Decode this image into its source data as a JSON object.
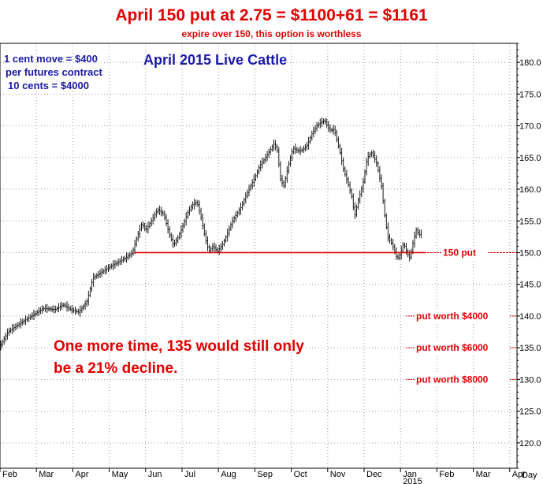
{
  "header": {
    "headline": "April 150 put at 2.75 = $1100+61 = $1161",
    "subhead": "expire over 150, this option is worthless"
  },
  "notes": {
    "move_line1": "1 cent move = $400",
    "move_line2": "per futures contract",
    "move_line3": "10 cents = $4000",
    "decline_note": "One more time, 135 would still only be a 21% decline."
  },
  "chart_data": {
    "type": "bar",
    "title": "April 2015 Live Cattle",
    "subtitle": "",
    "xlabel": "",
    "ylabel": "",
    "ylim": [
      116,
      183
    ],
    "y_axis_position": "right",
    "y_ticks": [
      120,
      125,
      130,
      135,
      140,
      145,
      150,
      155,
      160,
      165,
      170,
      175,
      180
    ],
    "x_ticks": [
      "Feb",
      "Mar",
      "Apr",
      "May",
      "Jun",
      "Jul",
      "Aug",
      "Sep",
      "Oct",
      "Nov",
      "Dec",
      "Jan",
      "Feb",
      "Mar",
      "Apr"
    ],
    "x_extra_label": "2015",
    "x_axis_end_label": "Day",
    "grid": true,
    "price_path": [
      [
        0,
        135.2
      ],
      [
        10,
        137.5
      ],
      [
        25,
        138.8
      ],
      [
        35,
        139.6
      ],
      [
        45,
        140.4
      ],
      [
        55,
        141.2
      ],
      [
        70,
        141.0
      ],
      [
        80,
        141.8
      ],
      [
        90,
        141.0
      ],
      [
        100,
        140.6
      ],
      [
        110,
        142.2
      ],
      [
        118,
        146.0
      ],
      [
        130,
        147.0
      ],
      [
        140,
        147.8
      ],
      [
        150,
        148.5
      ],
      [
        160,
        149.2
      ],
      [
        168,
        150.0
      ],
      [
        174,
        152.5
      ],
      [
        180,
        154.6
      ],
      [
        185,
        153.5
      ],
      [
        192,
        155.0
      ],
      [
        200,
        156.8
      ],
      [
        208,
        156.0
      ],
      [
        214,
        153.2
      ],
      [
        220,
        151.2
      ],
      [
        226,
        152.4
      ],
      [
        232,
        154.2
      ],
      [
        238,
        156.3
      ],
      [
        244,
        157.5
      ],
      [
        250,
        158.0
      ],
      [
        255,
        155.6
      ],
      [
        260,
        152.5
      ],
      [
        265,
        150.2
      ],
      [
        270,
        151.0
      ],
      [
        276,
        150.2
      ],
      [
        282,
        151.2
      ],
      [
        288,
        152.8
      ],
      [
        294,
        154.8
      ],
      [
        300,
        156.0
      ],
      [
        306,
        157.2
      ],
      [
        312,
        159.0
      ],
      [
        318,
        160.5
      ],
      [
        324,
        162.0
      ],
      [
        330,
        163.8
      ],
      [
        336,
        164.8
      ],
      [
        342,
        166.0
      ],
      [
        348,
        167.2
      ],
      [
        352,
        166.0
      ],
      [
        356,
        161.5
      ],
      [
        360,
        160.5
      ],
      [
        366,
        163.8
      ],
      [
        372,
        166.5
      ],
      [
        378,
        166.0
      ],
      [
        384,
        166.2
      ],
      [
        390,
        167.0
      ],
      [
        396,
        168.8
      ],
      [
        402,
        170.0
      ],
      [
        408,
        170.6
      ],
      [
        412,
        170.8
      ],
      [
        416,
        169.8
      ],
      [
        420,
        169.2
      ],
      [
        424,
        169.5
      ],
      [
        428,
        167.5
      ],
      [
        432,
        165.5
      ],
      [
        436,
        163.0
      ],
      [
        440,
        161.5
      ],
      [
        446,
        159.0
      ],
      [
        450,
        155.8
      ],
      [
        455,
        158.5
      ],
      [
        460,
        160.5
      ],
      [
        466,
        165.0
      ],
      [
        472,
        165.8
      ],
      [
        478,
        164.0
      ],
      [
        484,
        160.5
      ],
      [
        488,
        156.0
      ],
      [
        492,
        152.5
      ],
      [
        498,
        151.2
      ],
      [
        504,
        149.0
      ],
      [
        508,
        149.8
      ],
      [
        512,
        151.5
      ],
      [
        516,
        150.0
      ],
      [
        520,
        149.2
      ],
      [
        524,
        151.5
      ],
      [
        528,
        153.6
      ],
      [
        532,
        152.8
      ],
      [
        536,
        153.2
      ]
    ],
    "annotations": [
      {
        "text": "150 put",
        "value": 150,
        "line_start_x": 170,
        "label_x": 562,
        "color": "#e00000"
      },
      {
        "text": "put worth $4000",
        "value": 140,
        "line_start_x": 515,
        "label_x": 528,
        "color": "#e00000"
      },
      {
        "text": "put worth $6000",
        "value": 135,
        "line_start_x": 515,
        "label_x": 528,
        "color": "#e00000"
      },
      {
        "text": "put worth $8000",
        "value": 130,
        "line_start_x": 515,
        "label_x": 528,
        "color": "#e00000"
      }
    ],
    "colors": {
      "bars": "#1a1a1a",
      "annotation": "#e00000",
      "notes": "#1a1aa8",
      "grid": "#9a9a9a"
    }
  }
}
